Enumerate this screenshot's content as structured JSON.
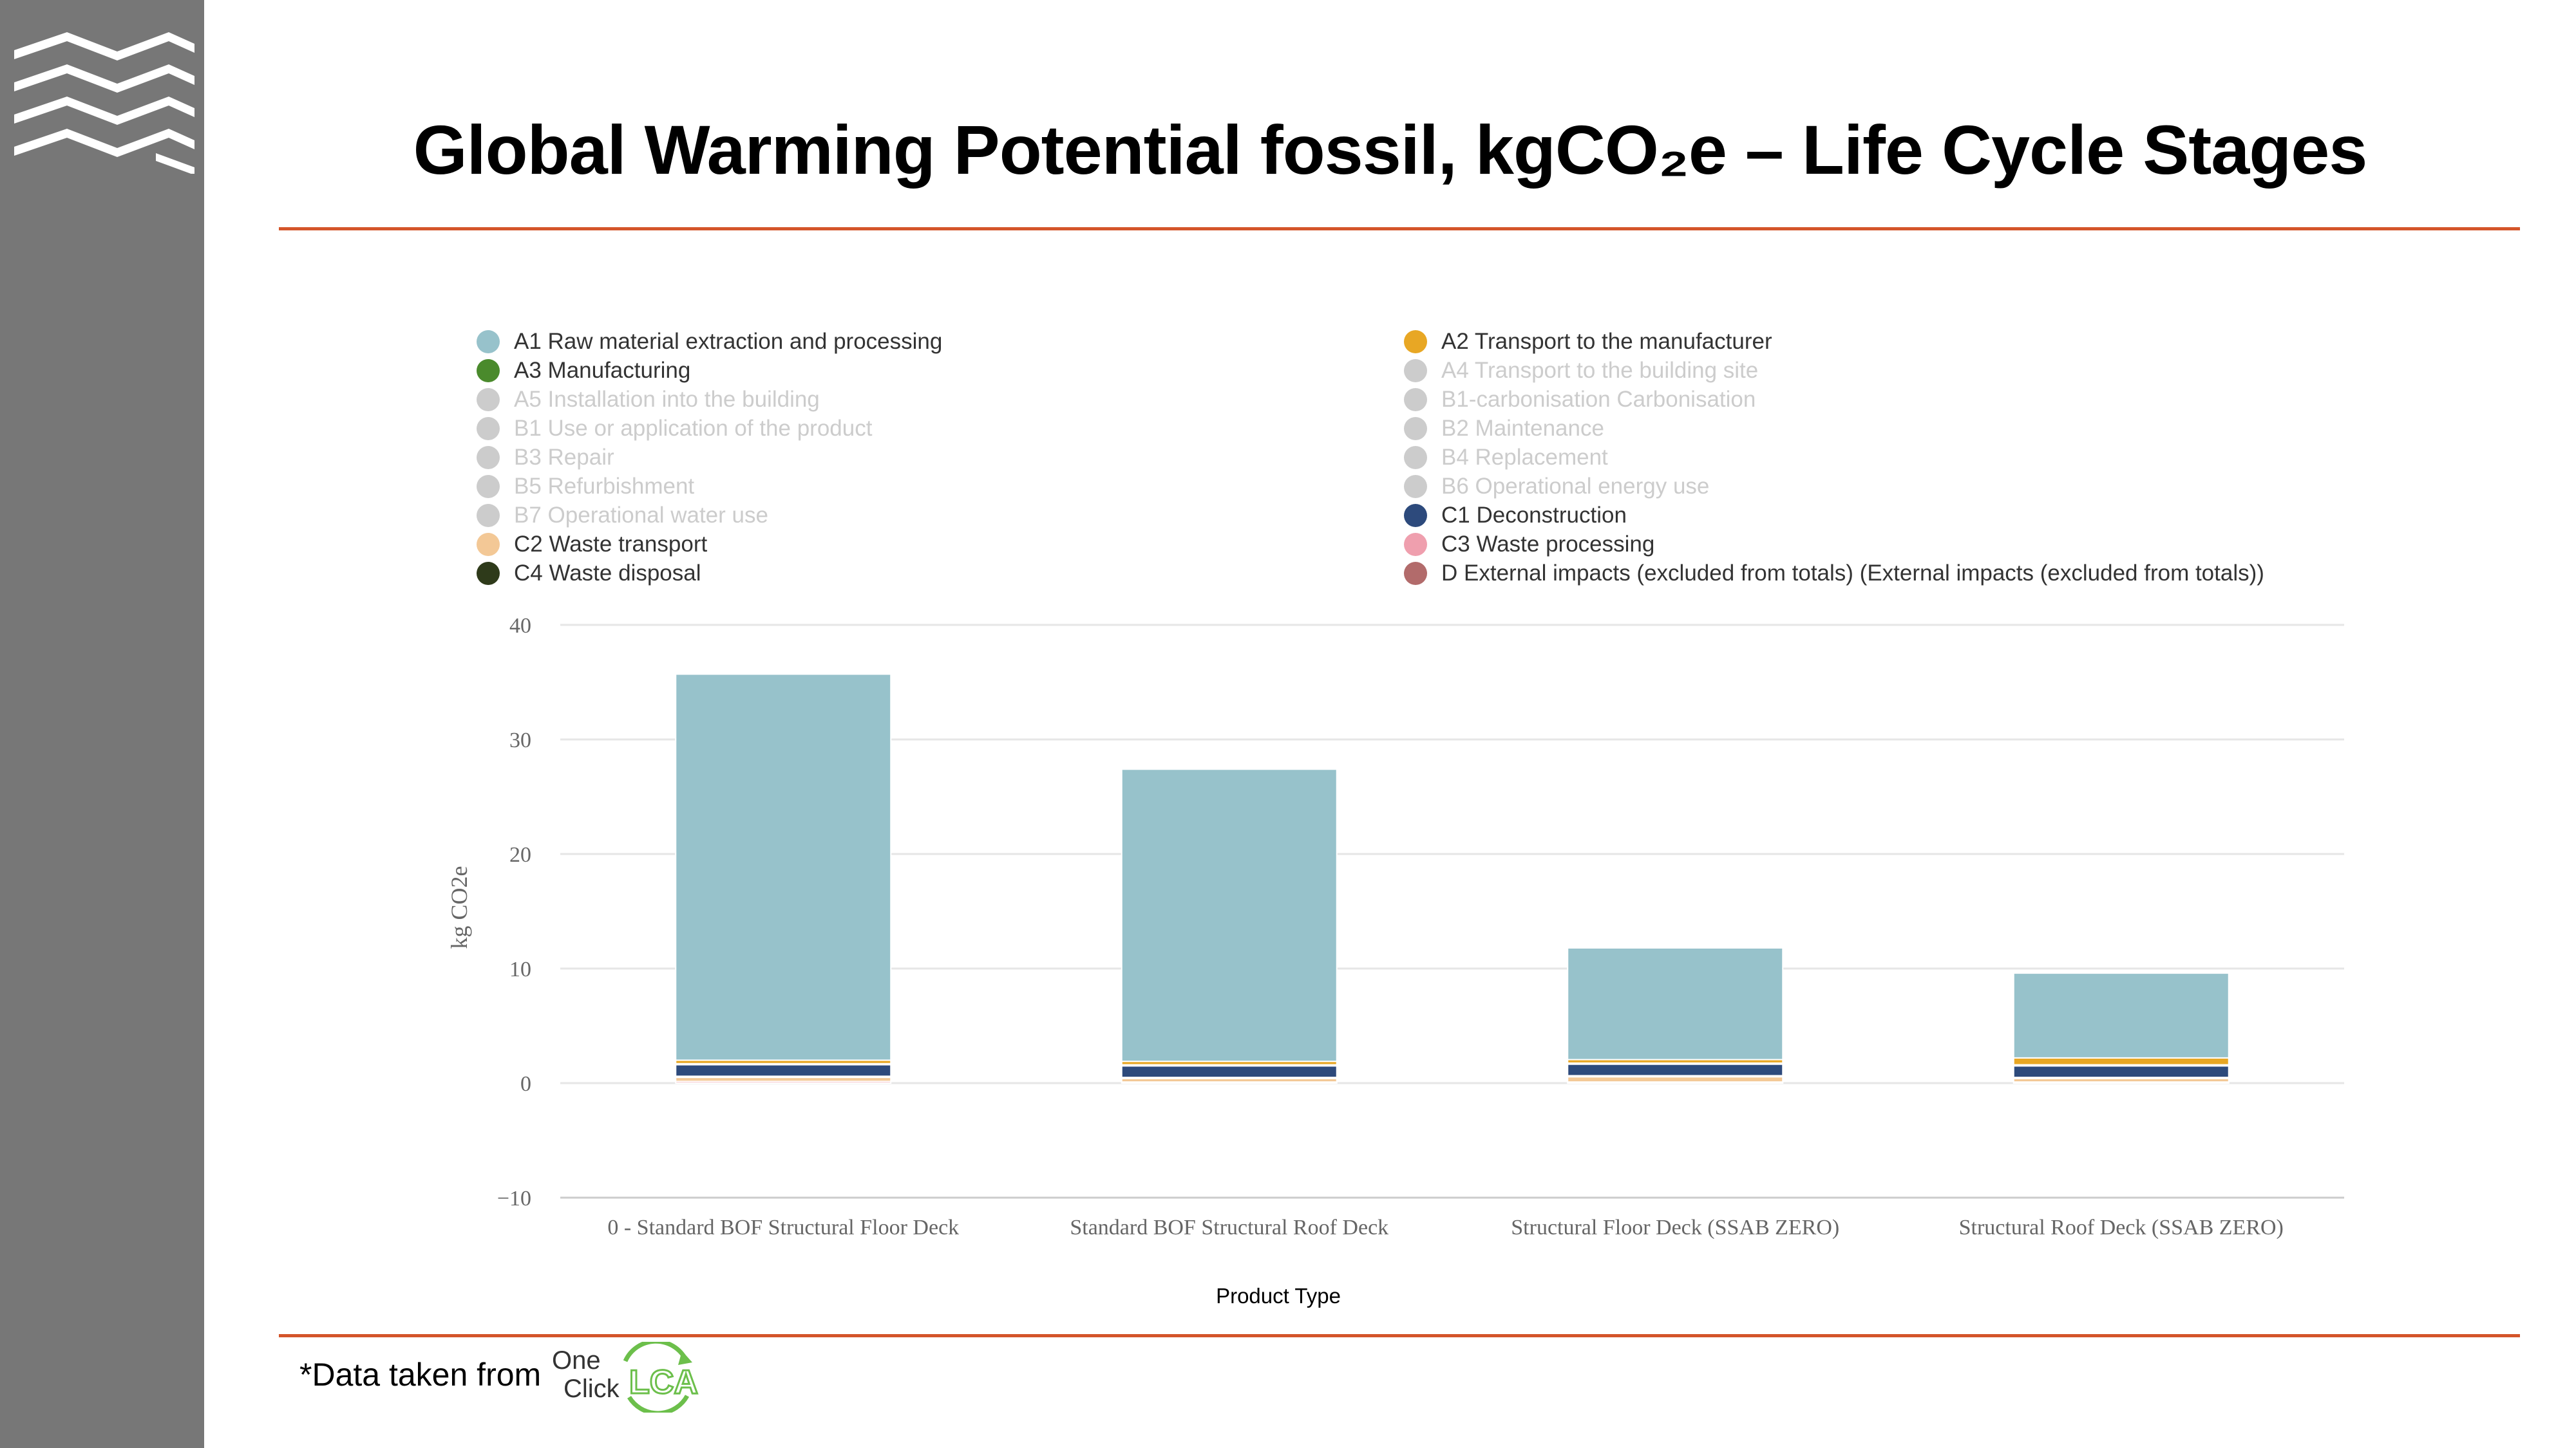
{
  "title": "Global Warming Potential fossil, kgCO₂e  – Life Cycle Stages",
  "footer": {
    "source_text": "*Data taken from",
    "logo_one": "One",
    "logo_click": "Click",
    "logo_lca": "LCA"
  },
  "legend": [
    {
      "label": "A1 Raw material extraction and processing",
      "color": "#97c2cb",
      "active": true
    },
    {
      "label": "A2 Transport to the manufacturer",
      "color": "#e8a724",
      "active": true
    },
    {
      "label": "A3 Manufacturing",
      "color": "#4a8a2c",
      "active": true
    },
    {
      "label": "A4 Transport to the building site",
      "color": "#cccccc",
      "active": false
    },
    {
      "label": "A5 Installation into the building",
      "color": "#cccccc",
      "active": false
    },
    {
      "label": "B1-carbonisation Carbonisation",
      "color": "#cccccc",
      "active": false
    },
    {
      "label": "B1 Use or application of the product",
      "color": "#cccccc",
      "active": false
    },
    {
      "label": "B2 Maintenance",
      "color": "#cccccc",
      "active": false
    },
    {
      "label": "B3 Repair",
      "color": "#cccccc",
      "active": false
    },
    {
      "label": "B4 Replacement",
      "color": "#cccccc",
      "active": false
    },
    {
      "label": "B5 Refurbishment",
      "color": "#cccccc",
      "active": false
    },
    {
      "label": "B6 Operational energy use",
      "color": "#cccccc",
      "active": false
    },
    {
      "label": "B7 Operational water use",
      "color": "#cccccc",
      "active": false
    },
    {
      "label": "C1 Deconstruction",
      "color": "#2d4a7c",
      "active": true
    },
    {
      "label": "C2 Waste transport",
      "color": "#f3c896",
      "active": true
    },
    {
      "label": "C3 Waste processing",
      "color": "#ef9fae",
      "active": true
    },
    {
      "label": "C4 Waste disposal",
      "color": "#2e3a1a",
      "active": true
    },
    {
      "label": "D External impacts (excluded from totals) (External impacts (excluded from totals))",
      "color": "#b26b6b",
      "active": true
    }
  ],
  "chart_data": {
    "type": "bar",
    "stacked": true,
    "title": "Global Warming Potential fossil, kgCO₂e  – Life Cycle Stages",
    "xlabel": "Product Type",
    "ylabel": "kg CO2e",
    "ylim": [
      -10,
      40
    ],
    "yticks": [
      -10,
      0,
      10,
      20,
      30,
      40
    ],
    "grid": true,
    "legend_position": "top",
    "categories": [
      "0 - Standard BOF Structural Floor Deck",
      "Standard BOF Structural Roof Deck",
      "Structural Floor Deck (SSAB ZERO)",
      "Structural Roof Deck (SSAB ZERO)"
    ],
    "series": [
      {
        "name": "C3 Waste processing",
        "color": "#ef9fae",
        "values": [
          0.15,
          0.1,
          0.1,
          0.1
        ]
      },
      {
        "name": "C2 Waste transport",
        "color": "#f3c896",
        "values": [
          0.35,
          0.3,
          0.45,
          0.3
        ]
      },
      {
        "name": "C4 Waste disposal",
        "color": "#2e3a1a",
        "values": [
          0.1,
          0.1,
          0.1,
          0.1
        ]
      },
      {
        "name": "C1 Deconstruction",
        "color": "#2d4a7c",
        "values": [
          1.0,
          1.0,
          1.0,
          1.0
        ]
      },
      {
        "name": "A3 Manufacturing",
        "color": "#4a8a2c",
        "values": [
          0.1,
          0.1,
          0.1,
          0.1
        ]
      },
      {
        "name": "A2 Transport to the manufacturer",
        "color": "#e8a724",
        "values": [
          0.3,
          0.3,
          0.3,
          0.6
        ]
      },
      {
        "name": "A1 Raw material extraction and processing",
        "color": "#97c2cb",
        "values": [
          33.7,
          25.5,
          9.75,
          7.4
        ]
      }
    ]
  }
}
